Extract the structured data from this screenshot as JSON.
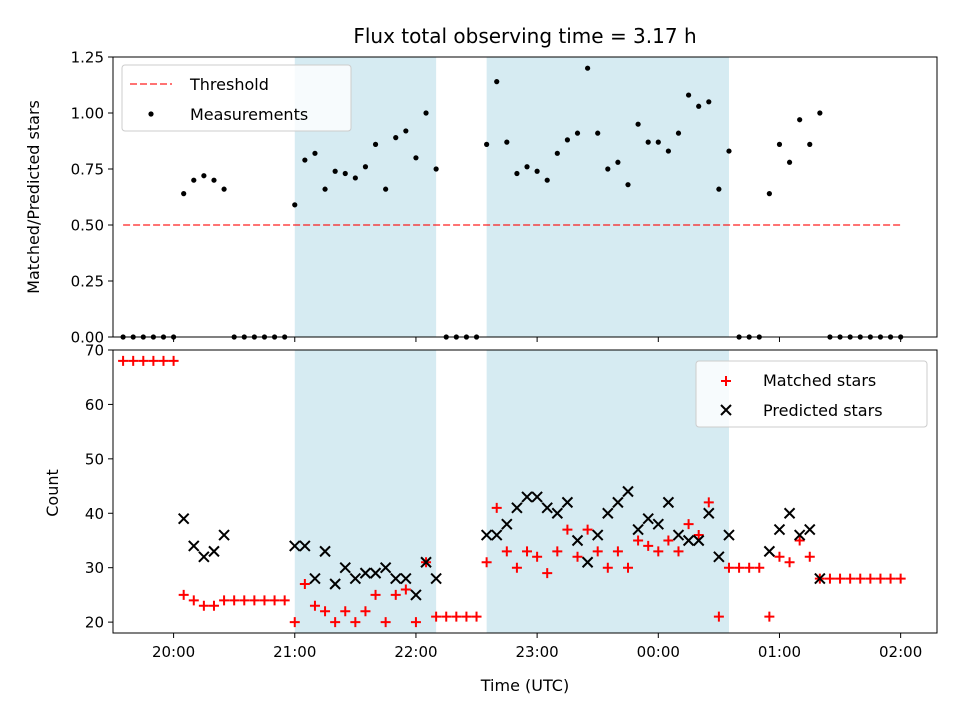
{
  "title": "Flux total observing time = 3.17 h",
  "colors": {
    "shade": "#add8e6",
    "threshold": "#ff0000",
    "measurement": "#000000",
    "matched": "#ff0000",
    "predicted": "#000000"
  },
  "chart_data": [
    {
      "type": "scatter",
      "title": "Flux total observing time = 3.17 h",
      "ylabel": "Matched/Predicted stars",
      "ylim": [
        0,
        1.25
      ],
      "yticks": [
        "0.00",
        "0.25",
        "0.50",
        "0.75",
        "1.00",
        "1.25"
      ],
      "legend_position": "top-left",
      "legend": [
        "Threshold",
        "Measurements"
      ],
      "shaded_intervals": [
        [
          "21:00",
          "22:10"
        ],
        [
          "22:35",
          "00:35"
        ]
      ],
      "threshold": {
        "name": "Threshold",
        "y": 0.5,
        "x_start": "19:35",
        "x_end": "02:00",
        "style": "dashed"
      },
      "series": [
        {
          "name": "Measurements",
          "points": [
            [
              "19:35",
              0
            ],
            [
              "19:40",
              0
            ],
            [
              "19:45",
              0
            ],
            [
              "19:50",
              0
            ],
            [
              "19:55",
              0
            ],
            [
              "20:00",
              0
            ],
            [
              "20:05",
              0.64
            ],
            [
              "20:10",
              0.7
            ],
            [
              "20:15",
              0.72
            ],
            [
              "20:20",
              0.7
            ],
            [
              "20:25",
              0.66
            ],
            [
              "20:30",
              0
            ],
            [
              "20:35",
              0
            ],
            [
              "20:40",
              0
            ],
            [
              "20:45",
              0
            ],
            [
              "20:50",
              0
            ],
            [
              "20:55",
              0
            ],
            [
              "21:00",
              0.59
            ],
            [
              "21:05",
              0.79
            ],
            [
              "21:10",
              0.82
            ],
            [
              "21:15",
              0.66
            ],
            [
              "21:20",
              0.74
            ],
            [
              "21:25",
              0.73
            ],
            [
              "21:30",
              0.71
            ],
            [
              "21:35",
              0.76
            ],
            [
              "21:40",
              0.86
            ],
            [
              "21:45",
              0.66
            ],
            [
              "21:50",
              0.89
            ],
            [
              "21:55",
              0.92
            ],
            [
              "22:00",
              0.8
            ],
            [
              "22:05",
              1.0
            ],
            [
              "22:10",
              0.75
            ],
            [
              "22:15",
              0
            ],
            [
              "22:20",
              0
            ],
            [
              "22:25",
              0
            ],
            [
              "22:30",
              0
            ],
            [
              "22:35",
              0.86
            ],
            [
              "22:40",
              1.14
            ],
            [
              "22:45",
              0.87
            ],
            [
              "22:50",
              0.73
            ],
            [
              "22:55",
              0.76
            ],
            [
              "23:00",
              0.74
            ],
            [
              "23:05",
              0.7
            ],
            [
              "23:10",
              0.82
            ],
            [
              "23:15",
              0.88
            ],
            [
              "23:20",
              0.91
            ],
            [
              "23:25",
              1.2
            ],
            [
              "23:30",
              0.91
            ],
            [
              "23:35",
              0.75
            ],
            [
              "23:40",
              0.78
            ],
            [
              "23:45",
              0.68
            ],
            [
              "23:50",
              0.95
            ],
            [
              "23:55",
              0.87
            ],
            [
              "00:00",
              0.87
            ],
            [
              "00:05",
              0.83
            ],
            [
              "00:10",
              0.91
            ],
            [
              "00:15",
              1.08
            ],
            [
              "00:20",
              1.03
            ],
            [
              "00:25",
              1.05
            ],
            [
              "00:30",
              0.66
            ],
            [
              "00:35",
              0.83
            ],
            [
              "00:40",
              0
            ],
            [
              "00:45",
              0
            ],
            [
              "00:50",
              0
            ],
            [
              "00:55",
              0.64
            ],
            [
              "01:00",
              0.86
            ],
            [
              "01:05",
              0.78
            ],
            [
              "01:10",
              0.97
            ],
            [
              "01:15",
              0.86
            ],
            [
              "01:20",
              1.0
            ],
            [
              "01:25",
              0
            ],
            [
              "01:30",
              0
            ],
            [
              "01:35",
              0
            ],
            [
              "01:40",
              0
            ],
            [
              "01:45",
              0
            ],
            [
              "01:50",
              0
            ],
            [
              "01:55",
              0
            ],
            [
              "02:00",
              0
            ]
          ]
        }
      ]
    },
    {
      "type": "scatter",
      "xlabel": "Time (UTC)",
      "ylabel": "Count",
      "ylim": [
        18,
        70
      ],
      "yticks": [
        "20",
        "30",
        "40",
        "50",
        "60",
        "70"
      ],
      "xticks": [
        "20:00",
        "21:00",
        "22:00",
        "23:00",
        "00:00",
        "01:00",
        "02:00"
      ],
      "legend_position": "top-right",
      "legend": [
        "Matched stars",
        "Predicted stars"
      ],
      "shaded_intervals": [
        [
          "21:00",
          "22:10"
        ],
        [
          "22:35",
          "00:35"
        ]
      ],
      "series": [
        {
          "name": "Matched stars",
          "marker": "plus",
          "points": [
            [
              "19:35",
              68
            ],
            [
              "19:40",
              68
            ],
            [
              "19:45",
              68
            ],
            [
              "19:50",
              68
            ],
            [
              "19:55",
              68
            ],
            [
              "20:00",
              68
            ],
            [
              "20:05",
              25
            ],
            [
              "20:10",
              24
            ],
            [
              "20:15",
              23
            ],
            [
              "20:20",
              23
            ],
            [
              "20:25",
              24
            ],
            [
              "20:30",
              24
            ],
            [
              "20:35",
              24
            ],
            [
              "20:40",
              24
            ],
            [
              "20:45",
              24
            ],
            [
              "20:50",
              24
            ],
            [
              "20:55",
              24
            ],
            [
              "21:00",
              20
            ],
            [
              "21:05",
              27
            ],
            [
              "21:10",
              23
            ],
            [
              "21:15",
              22
            ],
            [
              "21:20",
              20
            ],
            [
              "21:25",
              22
            ],
            [
              "21:30",
              20
            ],
            [
              "21:35",
              22
            ],
            [
              "21:40",
              25
            ],
            [
              "21:45",
              20
            ],
            [
              "21:50",
              25
            ],
            [
              "21:55",
              26
            ],
            [
              "22:00",
              20
            ],
            [
              "22:05",
              31
            ],
            [
              "22:10",
              21
            ],
            [
              "22:15",
              21
            ],
            [
              "22:20",
              21
            ],
            [
              "22:25",
              21
            ],
            [
              "22:30",
              21
            ],
            [
              "22:35",
              31
            ],
            [
              "22:40",
              41
            ],
            [
              "22:45",
              33
            ],
            [
              "22:50",
              30
            ],
            [
              "22:55",
              33
            ],
            [
              "23:00",
              32
            ],
            [
              "23:05",
              29
            ],
            [
              "23:10",
              33
            ],
            [
              "23:15",
              37
            ],
            [
              "23:20",
              32
            ],
            [
              "23:25",
              37
            ],
            [
              "23:30",
              33
            ],
            [
              "23:35",
              30
            ],
            [
              "23:40",
              33
            ],
            [
              "23:45",
              30
            ],
            [
              "23:50",
              35
            ],
            [
              "23:55",
              34
            ],
            [
              "00:00",
              33
            ],
            [
              "00:05",
              35
            ],
            [
              "00:10",
              33
            ],
            [
              "00:15",
              38
            ],
            [
              "00:20",
              36
            ],
            [
              "00:25",
              42
            ],
            [
              "00:30",
              21
            ],
            [
              "00:35",
              30
            ],
            [
              "00:40",
              30
            ],
            [
              "00:45",
              30
            ],
            [
              "00:50",
              30
            ],
            [
              "00:55",
              21
            ],
            [
              "01:00",
              32
            ],
            [
              "01:05",
              31
            ],
            [
              "01:10",
              35
            ],
            [
              "01:15",
              32
            ],
            [
              "01:20",
              28
            ],
            [
              "01:25",
              28
            ],
            [
              "01:30",
              28
            ],
            [
              "01:35",
              28
            ],
            [
              "01:40",
              28
            ],
            [
              "01:45",
              28
            ],
            [
              "01:50",
              28
            ],
            [
              "01:55",
              28
            ],
            [
              "02:00",
              28
            ]
          ]
        },
        {
          "name": "Predicted stars",
          "marker": "x",
          "points": [
            [
              "20:05",
              39
            ],
            [
              "20:10",
              34
            ],
            [
              "20:15",
              32
            ],
            [
              "20:20",
              33
            ],
            [
              "20:25",
              36
            ],
            [
              "21:00",
              34
            ],
            [
              "21:05",
              34
            ],
            [
              "21:10",
              28
            ],
            [
              "21:15",
              33
            ],
            [
              "21:20",
              27
            ],
            [
              "21:25",
              30
            ],
            [
              "21:30",
              28
            ],
            [
              "21:35",
              29
            ],
            [
              "21:40",
              29
            ],
            [
              "21:45",
              30
            ],
            [
              "21:50",
              28
            ],
            [
              "21:55",
              28
            ],
            [
              "22:00",
              25
            ],
            [
              "22:05",
              31
            ],
            [
              "22:10",
              28
            ],
            [
              "22:35",
              36
            ],
            [
              "22:40",
              36
            ],
            [
              "22:45",
              38
            ],
            [
              "22:50",
              41
            ],
            [
              "22:55",
              43
            ],
            [
              "23:00",
              43
            ],
            [
              "23:05",
              41
            ],
            [
              "23:10",
              40
            ],
            [
              "23:15",
              42
            ],
            [
              "23:20",
              35
            ],
            [
              "23:25",
              31
            ],
            [
              "23:30",
              36
            ],
            [
              "23:35",
              40
            ],
            [
              "23:40",
              42
            ],
            [
              "23:45",
              44
            ],
            [
              "23:50",
              37
            ],
            [
              "23:55",
              39
            ],
            [
              "00:00",
              38
            ],
            [
              "00:05",
              42
            ],
            [
              "00:10",
              36
            ],
            [
              "00:15",
              35
            ],
            [
              "00:20",
              35
            ],
            [
              "00:25",
              40
            ],
            [
              "00:30",
              32
            ],
            [
              "00:35",
              36
            ],
            [
              "00:55",
              33
            ],
            [
              "01:00",
              37
            ],
            [
              "01:05",
              40
            ],
            [
              "01:10",
              36
            ],
            [
              "01:15",
              37
            ],
            [
              "01:20",
              28
            ]
          ]
        }
      ]
    }
  ]
}
